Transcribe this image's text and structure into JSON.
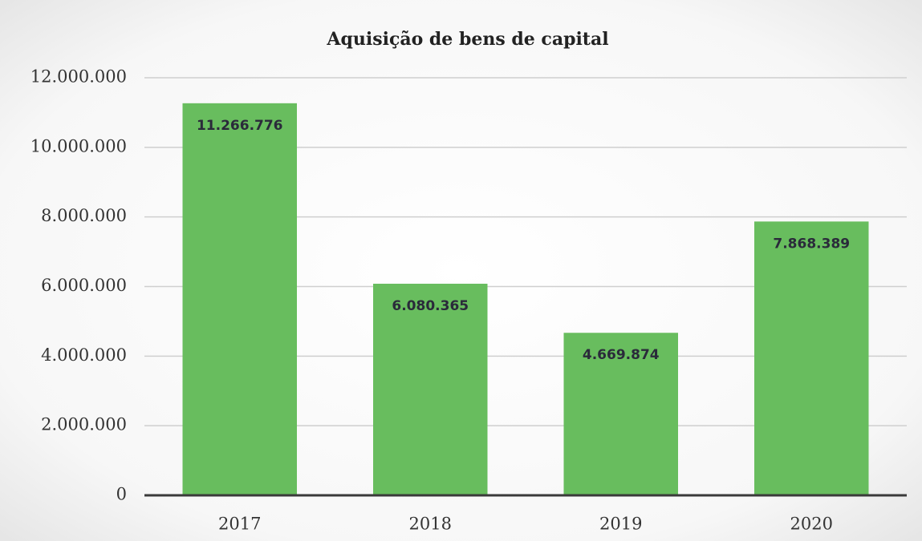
{
  "chart_data": {
    "type": "bar",
    "title": "Aquisição de bens de capital",
    "categories": [
      "2017",
      "2018",
      "2019",
      "2020"
    ],
    "values": [
      11266776,
      6080365,
      4669874,
      7868389
    ],
    "value_labels": [
      "11.266.776",
      "6.080.365",
      "4.669.874",
      "7.868.389"
    ],
    "color": "#68bd5e",
    "ylim": [
      0,
      12000000
    ],
    "yticks": [
      0,
      {
        "value": 2000000,
        "label": "2.000.000"
      },
      {
        "value": 4000000,
        "label": "4.000.000"
      },
      {
        "value": 6000000,
        "label": "6.000.000"
      },
      {
        "value": 8000000,
        "label": "8.000.000"
      },
      {
        "value": 10000000,
        "label": "10.000.000"
      },
      {
        "value": 12000000,
        "label": "12.000.000"
      }
    ],
    "grid": true
  }
}
